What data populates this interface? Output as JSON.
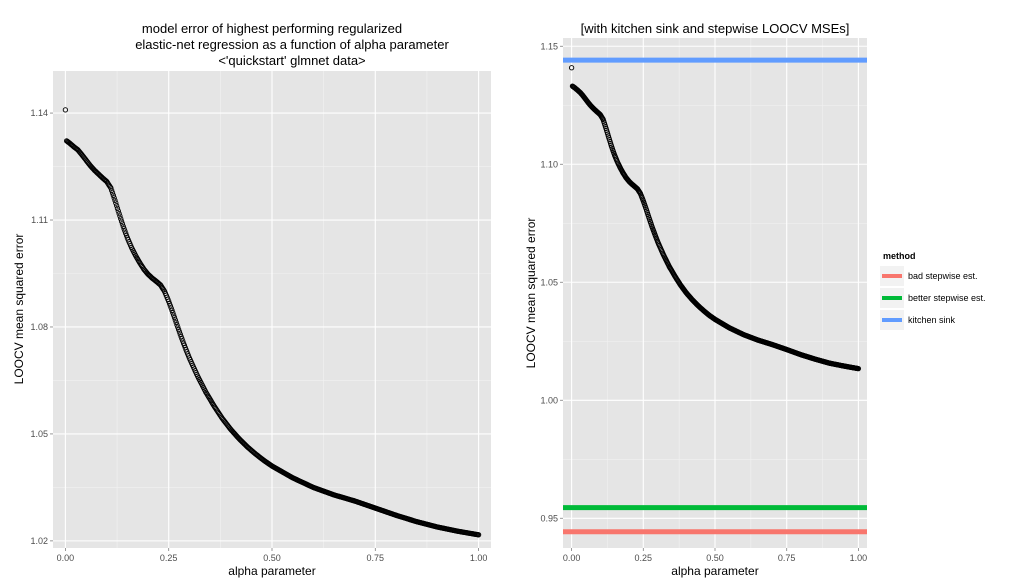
{
  "chart_data": [
    {
      "type": "scatter",
      "title_lines": [
        "model error of highest performing regularized",
        "elastic-net regression as a function of alpha parameter",
        "<'quickstart' glmnet data>"
      ],
      "xlabel": "alpha parameter",
      "ylabel": "LOOCV mean squared error",
      "xlim": [
        -0.03,
        1.03
      ],
      "ylim": [
        1.018,
        1.1518
      ],
      "xticks": [
        0.0,
        0.25,
        0.5,
        0.75,
        1.0
      ],
      "xtick_labels": [
        "0.00",
        "0.25",
        "0.50",
        "0.75",
        "1.00"
      ],
      "yticks": [
        1.02,
        1.05,
        1.08,
        1.11,
        1.14
      ],
      "ytick_labels": [
        "1.02",
        "1.05",
        "1.08",
        "1.11",
        "1.14"
      ],
      "grid": true,
      "background": "#e5e5e5",
      "series": [
        {
          "points": [
            [
              0.0,
              1.1409
            ],
            [
              0.003,
              1.1322
            ],
            [
              0.01,
              1.1316
            ],
            [
              0.02,
              1.1306
            ],
            [
              0.03,
              1.1297
            ],
            [
              0.04,
              1.1283
            ],
            [
              0.05,
              1.1268
            ],
            [
              0.06,
              1.1253
            ],
            [
              0.07,
              1.124
            ],
            [
              0.08,
              1.1229
            ],
            [
              0.09,
              1.1218
            ],
            [
              0.1,
              1.1208
            ],
            [
              0.11,
              1.119
            ],
            [
              0.12,
              1.1155
            ],
            [
              0.13,
              1.1118
            ],
            [
              0.14,
              1.1082
            ],
            [
              0.15,
              1.105
            ],
            [
              0.16,
              1.1023
            ],
            [
              0.17,
              1.1
            ],
            [
              0.18,
              1.098
            ],
            [
              0.19,
              1.0962
            ],
            [
              0.2,
              1.0948
            ],
            [
              0.21,
              1.0937
            ],
            [
              0.22,
              1.0928
            ],
            [
              0.23,
              1.0918
            ],
            [
              0.24,
              1.09
            ],
            [
              0.25,
              1.0872
            ],
            [
              0.26,
              1.084
            ],
            [
              0.27,
              1.0806
            ],
            [
              0.28,
              1.0773
            ],
            [
              0.29,
              1.0742
            ],
            [
              0.3,
              1.0713
            ],
            [
              0.32,
              1.0662
            ],
            [
              0.34,
              1.0617
            ],
            [
              0.36,
              1.0578
            ],
            [
              0.38,
              1.0543
            ],
            [
              0.4,
              1.0513
            ],
            [
              0.42,
              1.0487
            ],
            [
              0.44,
              1.0464
            ],
            [
              0.46,
              1.0444
            ],
            [
              0.48,
              1.0426
            ],
            [
              0.5,
              1.041
            ],
            [
              0.55,
              1.0377
            ],
            [
              0.6,
              1.035
            ],
            [
              0.65,
              1.0329
            ],
            [
              0.7,
              1.0312
            ],
            [
              0.75,
              1.0292
            ],
            [
              0.8,
              1.0272
            ],
            [
              0.85,
              1.0254
            ],
            [
              0.9,
              1.0239
            ],
            [
              0.95,
              1.0227
            ],
            [
              1.0,
              1.0217
            ]
          ]
        }
      ]
    },
    {
      "type": "scatter",
      "title": "[with kitchen sink and stepwise LOOCV MSEs]",
      "xlabel": "alpha parameter",
      "ylabel": "LOOCV mean squared error",
      "xlim": [
        -0.03,
        1.03
      ],
      "ylim": [
        0.9374,
        1.1535
      ],
      "xticks": [
        0.0,
        0.25,
        0.5,
        0.75,
        1.0
      ],
      "xtick_labels": [
        "0.00",
        "0.25",
        "0.50",
        "0.75",
        "1.00"
      ],
      "yticks": [
        0.95,
        1.0,
        1.05,
        1.1,
        1.15
      ],
      "ytick_labels": [
        "0.95",
        "1.00",
        "1.05",
        "1.10",
        "1.15"
      ],
      "grid": true,
      "background": "#e5e5e5",
      "hlines": [
        {
          "method": "bad stepwise est.",
          "y": 0.9443,
          "color": "#f8766d"
        },
        {
          "method": "better stepwise est.",
          "y": 0.9545,
          "color": "#00ba38"
        },
        {
          "method": "kitchen sink",
          "y": 1.1441,
          "color": "#619cff"
        }
      ],
      "legend": {
        "title": "method",
        "placement": "right",
        "entries": [
          {
            "label": "bad stepwise est.",
            "color": "#f8766d"
          },
          {
            "label": "better stepwise est.",
            "color": "#00ba38"
          },
          {
            "label": "kitchen sink",
            "color": "#619cff"
          }
        ]
      },
      "series": [
        {
          "points": [
            [
              0.0,
              1.1409
            ],
            [
              0.003,
              1.1331
            ],
            [
              0.01,
              1.1325
            ],
            [
              0.02,
              1.1315
            ],
            [
              0.03,
              1.1304
            ],
            [
              0.04,
              1.129
            ],
            [
              0.05,
              1.1274
            ],
            [
              0.06,
              1.1258
            ],
            [
              0.07,
              1.1244
            ],
            [
              0.08,
              1.1232
            ],
            [
              0.09,
              1.1221
            ],
            [
              0.1,
              1.121
            ],
            [
              0.11,
              1.119
            ],
            [
              0.12,
              1.1152
            ],
            [
              0.13,
              1.1112
            ],
            [
              0.14,
              1.1073
            ],
            [
              0.15,
              1.1038
            ],
            [
              0.16,
              1.1009
            ],
            [
              0.17,
              1.0984
            ],
            [
              0.18,
              1.0962
            ],
            [
              0.19,
              1.0943
            ],
            [
              0.2,
              1.0928
            ],
            [
              0.21,
              1.0916
            ],
            [
              0.22,
              1.0906
            ],
            [
              0.23,
              1.0895
            ],
            [
              0.24,
              1.0876
            ],
            [
              0.25,
              1.0845
            ],
            [
              0.26,
              1.081
            ],
            [
              0.27,
              1.0773
            ],
            [
              0.28,
              1.0737
            ],
            [
              0.29,
              1.0704
            ],
            [
              0.3,
              1.0672
            ],
            [
              0.32,
              1.0617
            ],
            [
              0.34,
              1.0568
            ],
            [
              0.36,
              1.0526
            ],
            [
              0.38,
              1.0488
            ],
            [
              0.4,
              1.0455
            ],
            [
              0.42,
              1.0427
            ],
            [
              0.44,
              1.0402
            ],
            [
              0.46,
              1.038
            ],
            [
              0.48,
              1.036
            ],
            [
              0.5,
              1.0343
            ],
            [
              0.55,
              1.0307
            ],
            [
              0.6,
              1.0278
            ],
            [
              0.65,
              1.0255
            ],
            [
              0.7,
              1.0236
            ],
            [
              0.75,
              1.0215
            ],
            [
              0.8,
              1.0193
            ],
            [
              0.85,
              1.0174
            ],
            [
              0.9,
              1.0157
            ],
            [
              0.95,
              1.0145
            ],
            [
              1.0,
              1.0134
            ]
          ]
        }
      ]
    }
  ]
}
